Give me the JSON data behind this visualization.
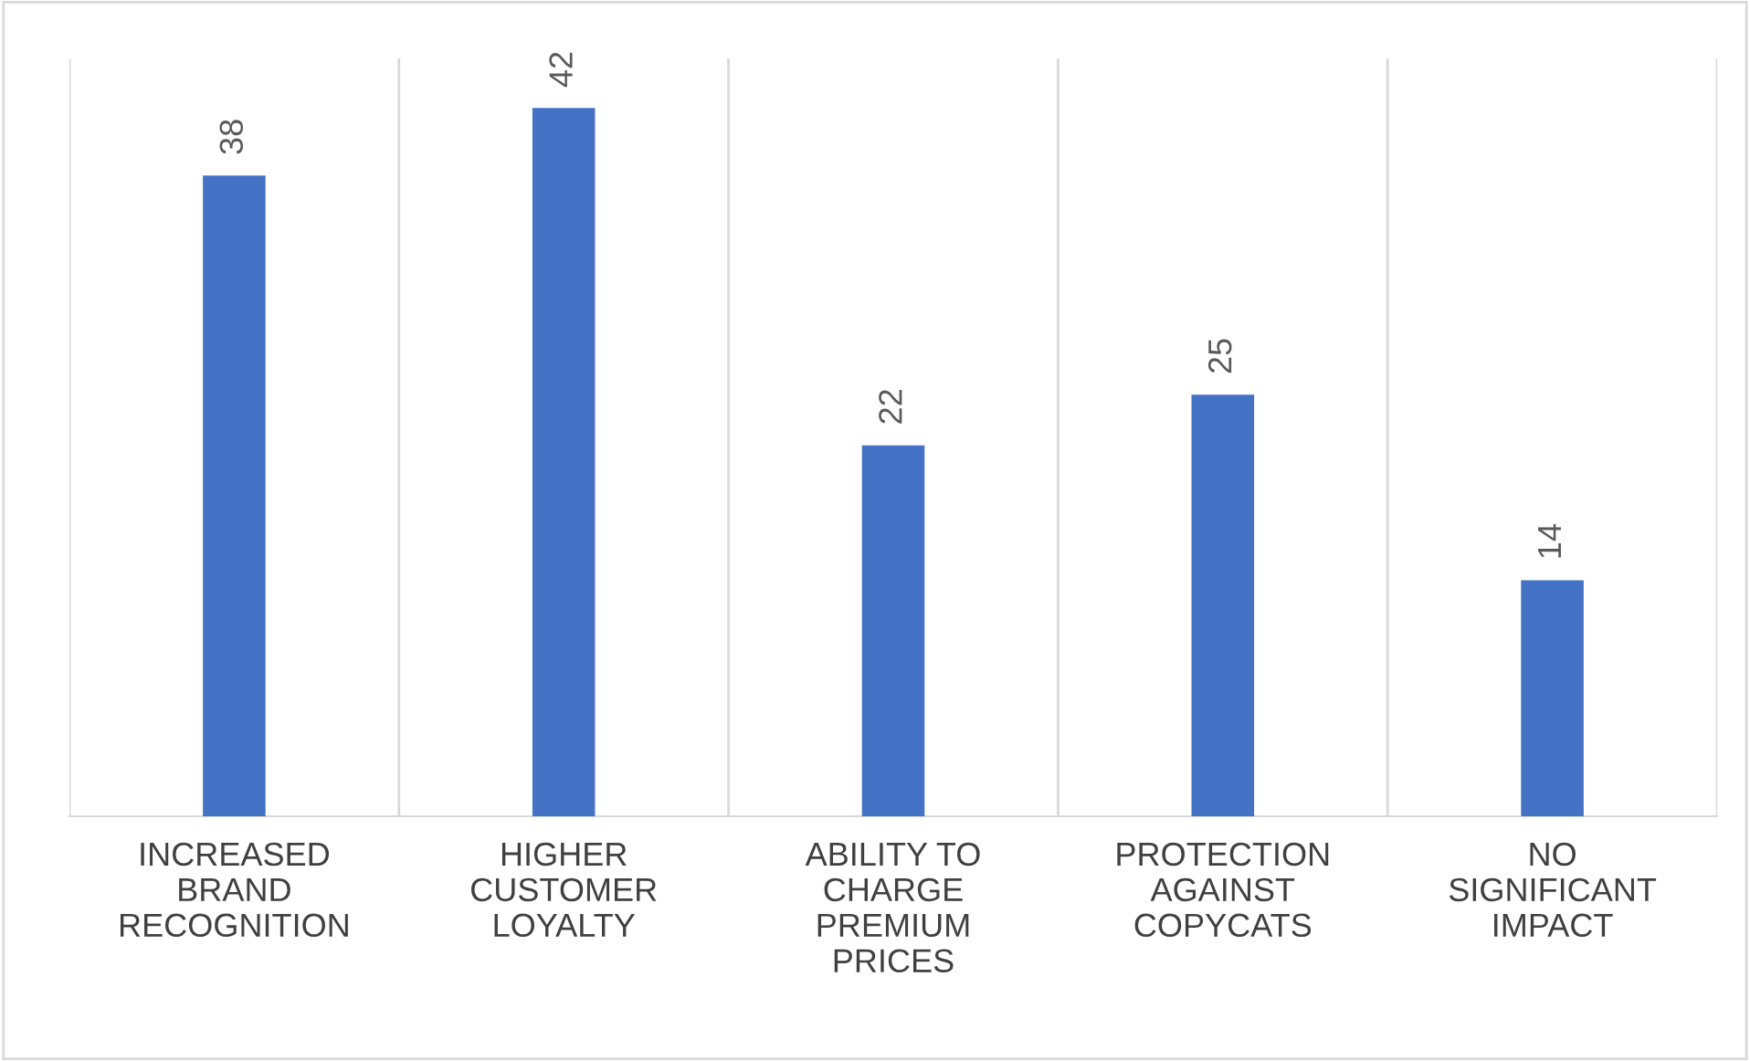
{
  "chart_data": {
    "type": "bar",
    "categories": [
      "INCREASED\nBRAND\nRECOGNITION",
      "HIGHER\nCUSTOMER\nLOYALTY",
      "ABILITY TO\nCHARGE\nPREMIUM\nPRICES",
      "PROTECTION\nAGAINST\nCOPYCATS",
      "NO\nSIGNIFICANT\nIMPACT"
    ],
    "values": [
      38,
      42,
      22,
      25,
      14
    ],
    "color": "#4472c4",
    "data_labels": true,
    "grid": "x",
    "legend": false
  }
}
